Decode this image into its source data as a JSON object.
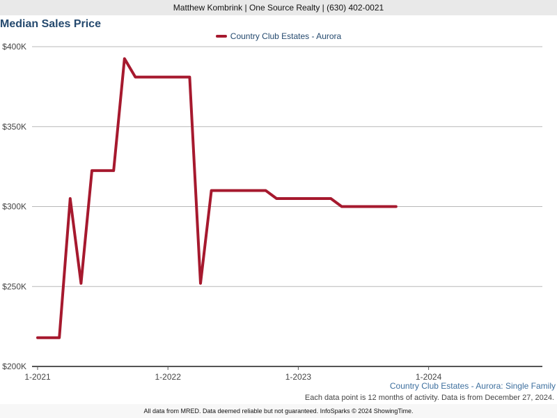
{
  "header": {
    "agent_line": "Matthew Kombrink | One Source Realty | (630) 402-0021"
  },
  "chart_data": {
    "type": "line",
    "title": "Median Sales Price",
    "subtitle": "Country Club Estates - Aurora: Single Family",
    "note": "Each data point is 12 months of activity. Data is from December 27, 2024.",
    "footer": "All data from MRED. Data deemed reliable but not guaranteed. InfoSparks © 2024 ShowingTime.",
    "xlabel": "",
    "ylabel": "",
    "ylim": [
      200000,
      400000
    ],
    "y_ticks": [
      200000,
      250000,
      300000,
      350000,
      400000
    ],
    "y_tick_labels": [
      "$200K",
      "$250K",
      "$300K",
      "$350K",
      "$400K"
    ],
    "x_tick_labels": [
      "1-2021",
      "1-2022",
      "1-2023",
      "1-2024"
    ],
    "grid": true,
    "legend_position": "top-center",
    "series_color": "#a6192e",
    "series": [
      {
        "name": "Country Club Estates - Aurora",
        "x": [
          "2021-01",
          "2021-02",
          "2021-03",
          "2021-04",
          "2021-05",
          "2021-06",
          "2021-07",
          "2021-08",
          "2021-09",
          "2021-10",
          "2021-11",
          "2021-12",
          "2022-01",
          "2022-02",
          "2022-03",
          "2022-04",
          "2022-05",
          "2022-06",
          "2022-07",
          "2022-08",
          "2022-09",
          "2022-10",
          "2022-11",
          "2022-12",
          "2023-01",
          "2023-02",
          "2023-03",
          "2023-04",
          "2023-05",
          "2023-06",
          "2023-07",
          "2023-08",
          "2023-09",
          "2023-10"
        ],
        "values": [
          218000,
          218000,
          218000,
          305000,
          252000,
          322500,
          322500,
          322500,
          392500,
          381000,
          381000,
          381000,
          381000,
          381000,
          381000,
          252000,
          310000,
          310000,
          310000,
          310000,
          310000,
          310000,
          305000,
          305000,
          305000,
          305000,
          305000,
          305000,
          300000,
          300000,
          300000,
          300000,
          300000,
          300000
        ]
      }
    ]
  }
}
